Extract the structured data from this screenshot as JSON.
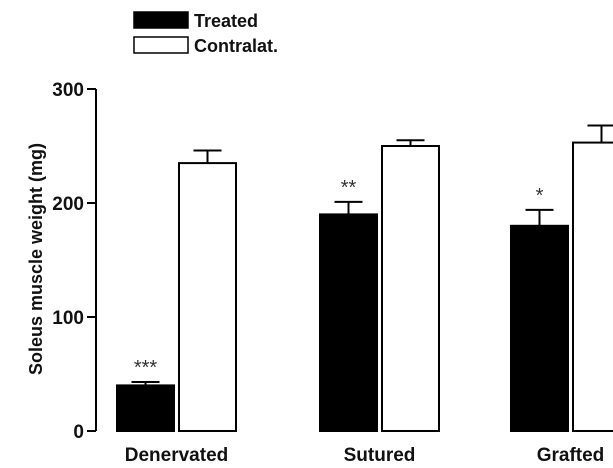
{
  "chart_data": {
    "type": "bar",
    "title": "",
    "xlabel": "",
    "ylabel": "Soleus muscle weight (mg)",
    "ylim": [
      0,
      300
    ],
    "yticks": [
      0,
      100,
      200,
      300
    ],
    "categories": [
      "Denervated",
      "Sutured",
      "Grafted"
    ],
    "legend_position": "top-left",
    "grid": false,
    "series": [
      {
        "name": "Treated",
        "fill": "#000000",
        "values": [
          40,
          190,
          180
        ],
        "errors": [
          3,
          11,
          14
        ],
        "annotations": [
          "***",
          "**",
          "*"
        ]
      },
      {
        "name": "Contralat.",
        "fill": "#ffffff",
        "values": [
          235,
          250,
          253
        ],
        "errors": [
          11,
          5,
          15
        ],
        "annotations": [
          "",
          "",
          ""
        ]
      }
    ]
  }
}
